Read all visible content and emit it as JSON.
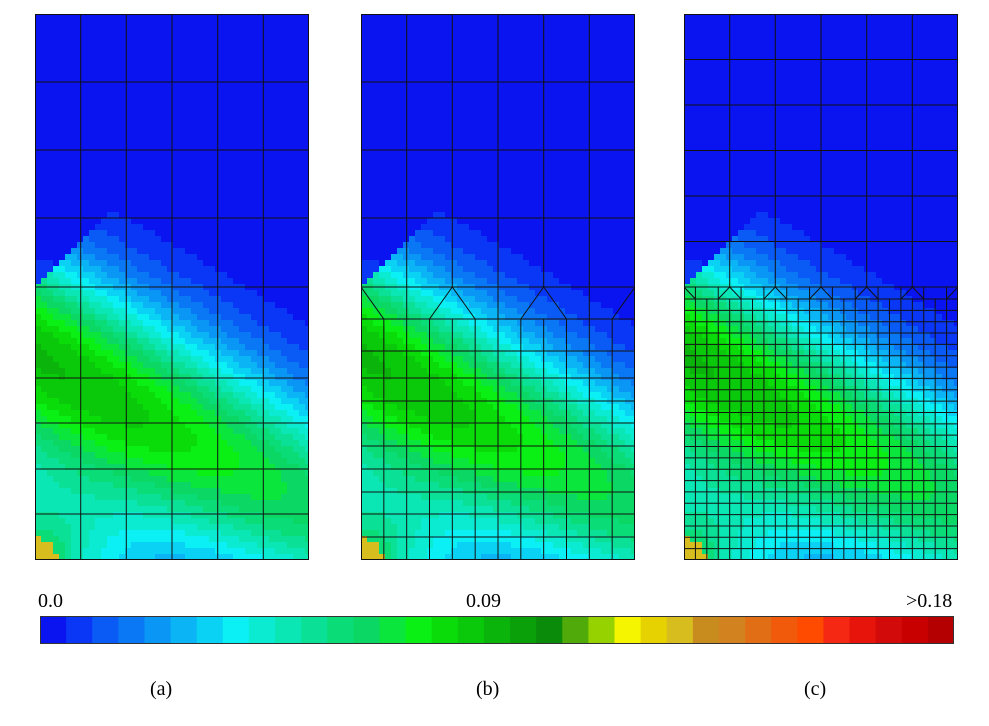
{
  "figure": {
    "panels": [
      {
        "id": "a",
        "label": "(a)",
        "mesh": "coarse"
      },
      {
        "id": "b",
        "label": "(b)",
        "mesh": "coarse-to-medium transition"
      },
      {
        "id": "c",
        "label": "(c)",
        "mesh": "coarse-to-fine transition"
      }
    ],
    "colorbar": {
      "min_label": "0.0",
      "mid_label": "0.09",
      "max_label": ">0.18",
      "min": 0.0,
      "mid": 0.09,
      "max": 0.18,
      "colors": [
        "#0a14f0",
        "#0a37f5",
        "#0a5af5",
        "#0a78f5",
        "#0a96f5",
        "#0ab4f5",
        "#0ad2f5",
        "#0af0f5",
        "#0aebd2",
        "#0ae6b4",
        "#0ae196",
        "#0adc78",
        "#0ad764",
        "#0ae63c",
        "#0af014",
        "#0adc0a",
        "#0ac80a",
        "#0ab40a",
        "#0aa00a",
        "#0a8c0a",
        "#50aa0a",
        "#96d200",
        "#f5f500",
        "#e6d200",
        "#d7be1e",
        "#c88c1e",
        "#d2821e",
        "#e16e14",
        "#f05a0a",
        "#ff4b00",
        "#f52814",
        "#e6140a",
        "#d20a0a",
        "#c80000",
        "#b40000"
      ]
    }
  }
}
